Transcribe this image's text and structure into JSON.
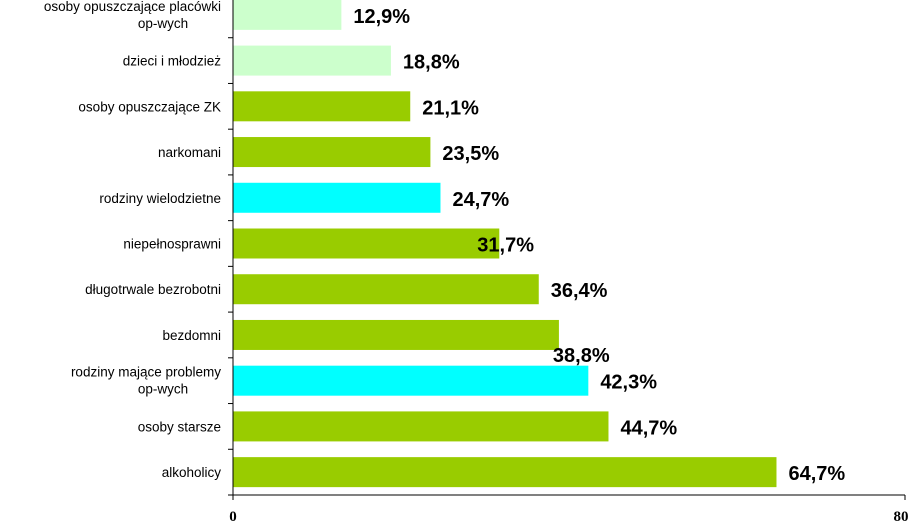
{
  "chart_data": {
    "type": "bar",
    "orientation": "horizontal",
    "categories": [
      "osoby opuszczające placówki op-wych",
      "dzieci i młodzież",
      "osoby opuszczające ZK",
      "narkomani",
      "rodziny wielodzietne",
      "niepełnosprawni",
      "długotrwale bezrobotni",
      "bezdomni",
      "rodziny mające problemy op-wych",
      "osoby starsze",
      "alkoholicy"
    ],
    "values": [
      12.9,
      18.8,
      21.1,
      23.5,
      24.7,
      31.7,
      36.4,
      38.8,
      42.3,
      44.7,
      64.7
    ],
    "value_labels": [
      "12,9%",
      "18,8%",
      "21,1%",
      "23,5%",
      "24,7%",
      "31,7%",
      "36,4%",
      "38,8%",
      "42,3%",
      "44,7%",
      "64,7%"
    ],
    "bar_colors": [
      "#ccffcc",
      "#ccffcc",
      "#99cc00",
      "#99cc00",
      "#00ffff",
      "#99cc00",
      "#99cc00",
      "#99cc00",
      "#00ffff",
      "#99cc00",
      "#99cc00"
    ],
    "xlim": [
      0,
      80
    ],
    "x_tick_labels": [
      "0",
      "80"
    ],
    "title": "",
    "xlabel": "",
    "ylabel": "",
    "grid": false,
    "legend": "none"
  }
}
